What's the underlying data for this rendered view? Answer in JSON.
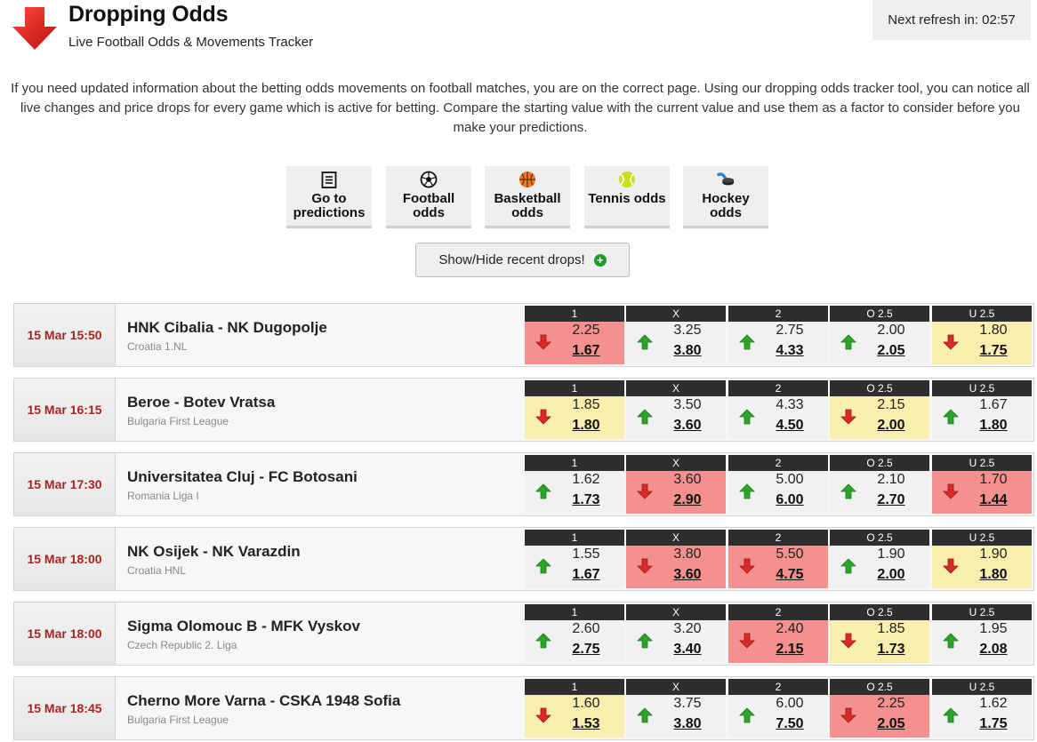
{
  "header": {
    "title": "Dropping Odds",
    "subtitle": "Live Football Odds & Movements Tracker",
    "refresh": "Next refresh in: 02:57"
  },
  "intro": "If you need updated information about the betting odds movements on football matches, you are on the correct page. Using our dropping odds tracker tool, you can notice all live changes and price drops for every game which is active for betting. Compare the starting value with the current value and use them as a factor to consider before you make your predictions.",
  "nav": [
    {
      "label": "Go to predictions",
      "icon": "document-icon"
    },
    {
      "label": "Football odds",
      "icon": "football-icon"
    },
    {
      "label": "Basketball odds",
      "icon": "basketball-icon"
    },
    {
      "label": "Tennis odds",
      "icon": "tennis-ball-icon"
    },
    {
      "label": "Hockey odds",
      "icon": "hockey-puck-icon"
    }
  ],
  "toggle_label": "Show/Hide recent drops!",
  "market_headers": [
    "1",
    "X",
    "2",
    "O 2.5",
    "U 2.5"
  ],
  "colors": {
    "drop": "#f9eeae",
    "big_drop": "#f4908d",
    "rise": "#f1f1f1",
    "time_text": "#a32626",
    "header_bg": "#2e2e2e"
  },
  "matches": [
    {
      "time": "15 Mar 15:50",
      "name": "HNK Cibalia - NK Dugopolje",
      "league": "Croatia 1.NL",
      "odds": [
        {
          "open": "2.25",
          "current": "1.67",
          "dir": "down",
          "level": "big"
        },
        {
          "open": "3.25",
          "current": "3.80",
          "dir": "up",
          "level": "none"
        },
        {
          "open": "2.75",
          "current": "4.33",
          "dir": "up",
          "level": "none"
        },
        {
          "open": "2.00",
          "current": "2.05",
          "dir": "up",
          "level": "none"
        },
        {
          "open": "1.80",
          "current": "1.75",
          "dir": "down",
          "level": "small"
        }
      ]
    },
    {
      "time": "15 Mar 16:15",
      "name": "Beroe - Botev Vratsa",
      "league": "Bulgaria First League",
      "odds": [
        {
          "open": "1.85",
          "current": "1.80",
          "dir": "down",
          "level": "small"
        },
        {
          "open": "3.50",
          "current": "3.60",
          "dir": "up",
          "level": "none"
        },
        {
          "open": "4.33",
          "current": "4.50",
          "dir": "up",
          "level": "none"
        },
        {
          "open": "2.15",
          "current": "2.00",
          "dir": "down",
          "level": "small"
        },
        {
          "open": "1.67",
          "current": "1.80",
          "dir": "up",
          "level": "none"
        }
      ]
    },
    {
      "time": "15 Mar 17:30",
      "name": "Universitatea Cluj - FC Botosani",
      "league": "Romania Liga I",
      "odds": [
        {
          "open": "1.62",
          "current": "1.73",
          "dir": "up",
          "level": "none"
        },
        {
          "open": "3.60",
          "current": "2.90",
          "dir": "down",
          "level": "big"
        },
        {
          "open": "5.00",
          "current": "6.00",
          "dir": "up",
          "level": "none"
        },
        {
          "open": "2.10",
          "current": "2.70",
          "dir": "up",
          "level": "none"
        },
        {
          "open": "1.70",
          "current": "1.44",
          "dir": "down",
          "level": "big"
        }
      ]
    },
    {
      "time": "15 Mar 18:00",
      "name": "NK Osijek - NK Varazdin",
      "league": "Croatia HNL",
      "odds": [
        {
          "open": "1.55",
          "current": "1.67",
          "dir": "up",
          "level": "none"
        },
        {
          "open": "3.80",
          "current": "3.60",
          "dir": "down",
          "level": "big"
        },
        {
          "open": "5.50",
          "current": "4.75",
          "dir": "down",
          "level": "big"
        },
        {
          "open": "1.90",
          "current": "2.00",
          "dir": "up",
          "level": "none"
        },
        {
          "open": "1.90",
          "current": "1.80",
          "dir": "down",
          "level": "small"
        }
      ]
    },
    {
      "time": "15 Mar 18:00",
      "name": "Sigma Olomouc B - MFK Vyskov",
      "league": "Czech Republic 2. Liga",
      "odds": [
        {
          "open": "2.60",
          "current": "2.75",
          "dir": "up",
          "level": "none"
        },
        {
          "open": "3.20",
          "current": "3.40",
          "dir": "up",
          "level": "none"
        },
        {
          "open": "2.40",
          "current": "2.15",
          "dir": "down",
          "level": "big"
        },
        {
          "open": "1.85",
          "current": "1.73",
          "dir": "down",
          "level": "small"
        },
        {
          "open": "1.95",
          "current": "2.08",
          "dir": "up",
          "level": "none"
        }
      ]
    },
    {
      "time": "15 Mar 18:45",
      "name": "Cherno More Varna - CSKA 1948 Sofia",
      "league": "Bulgaria First League",
      "odds": [
        {
          "open": "1.60",
          "current": "1.53",
          "dir": "down",
          "level": "small"
        },
        {
          "open": "3.75",
          "current": "3.80",
          "dir": "up",
          "level": "none"
        },
        {
          "open": "6.00",
          "current": "7.50",
          "dir": "up",
          "level": "none"
        },
        {
          "open": "2.25",
          "current": "2.05",
          "dir": "down",
          "level": "big"
        },
        {
          "open": "1.62",
          "current": "1.75",
          "dir": "up",
          "level": "none"
        }
      ]
    }
  ]
}
